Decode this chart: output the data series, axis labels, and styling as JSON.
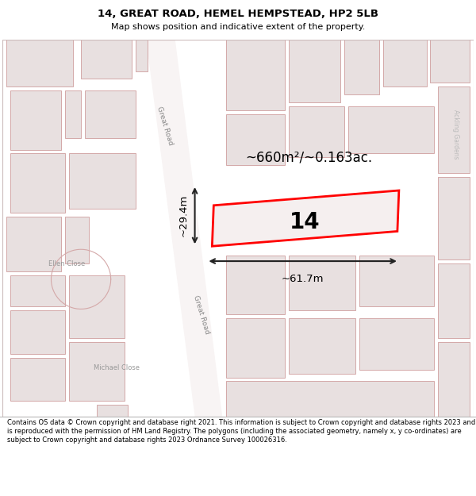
{
  "title_line1": "14, GREAT ROAD, HEMEL HEMPSTEAD, HP2 5LB",
  "title_line2": "Map shows position and indicative extent of the property.",
  "footer_text": "Contains OS data © Crown copyright and database right 2021. This information is subject to Crown copyright and database rights 2023 and is reproduced with the permission of HM Land Registry. The polygons (including the associated geometry, namely x, y co-ordinates) are subject to Crown copyright and database rights 2023 Ordnance Survey 100026316.",
  "map_bg": "#f0ecec",
  "building_fill": "#e8e0e0",
  "building_edge": "#d4a8a8",
  "road_fill": "#f8f4f4",
  "highlight_fill": "#f5efef",
  "highlight_edge": "#ff0000",
  "dim_color": "#222222",
  "label_14": "14",
  "area_label": "~660m²/~0.163ac.",
  "width_label": "~61.7m",
  "height_label": "~29.4m",
  "great_road_label": "Great Road",
  "ellen_close_label": "Ellen Close",
  "michael_close_label": "Michael Close",
  "ackling_label": "Ackling Gardens"
}
